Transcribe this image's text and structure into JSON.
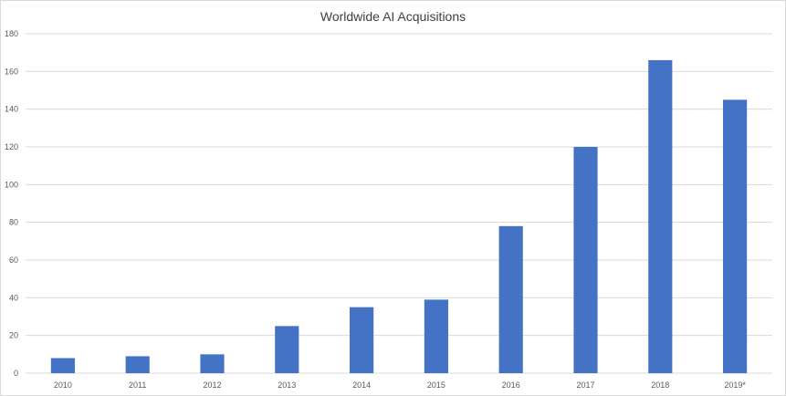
{
  "chart_data": {
    "type": "bar",
    "title": "Worldwide AI Acquisitions",
    "xlabel": "",
    "ylabel": "",
    "categories": [
      "2010",
      "2011",
      "2012",
      "2013",
      "2014",
      "2015",
      "2016",
      "2017",
      "2018",
      "2019*"
    ],
    "values": [
      8,
      9,
      10,
      25,
      35,
      39,
      78,
      120,
      166,
      145
    ],
    "ylim": [
      0,
      180
    ],
    "yticks": [
      0,
      20,
      40,
      60,
      80,
      100,
      120,
      140,
      160,
      180
    ],
    "grid": true,
    "legend": "none",
    "bar_color": "#4472c4",
    "grid_color": "#d9d9d9"
  }
}
